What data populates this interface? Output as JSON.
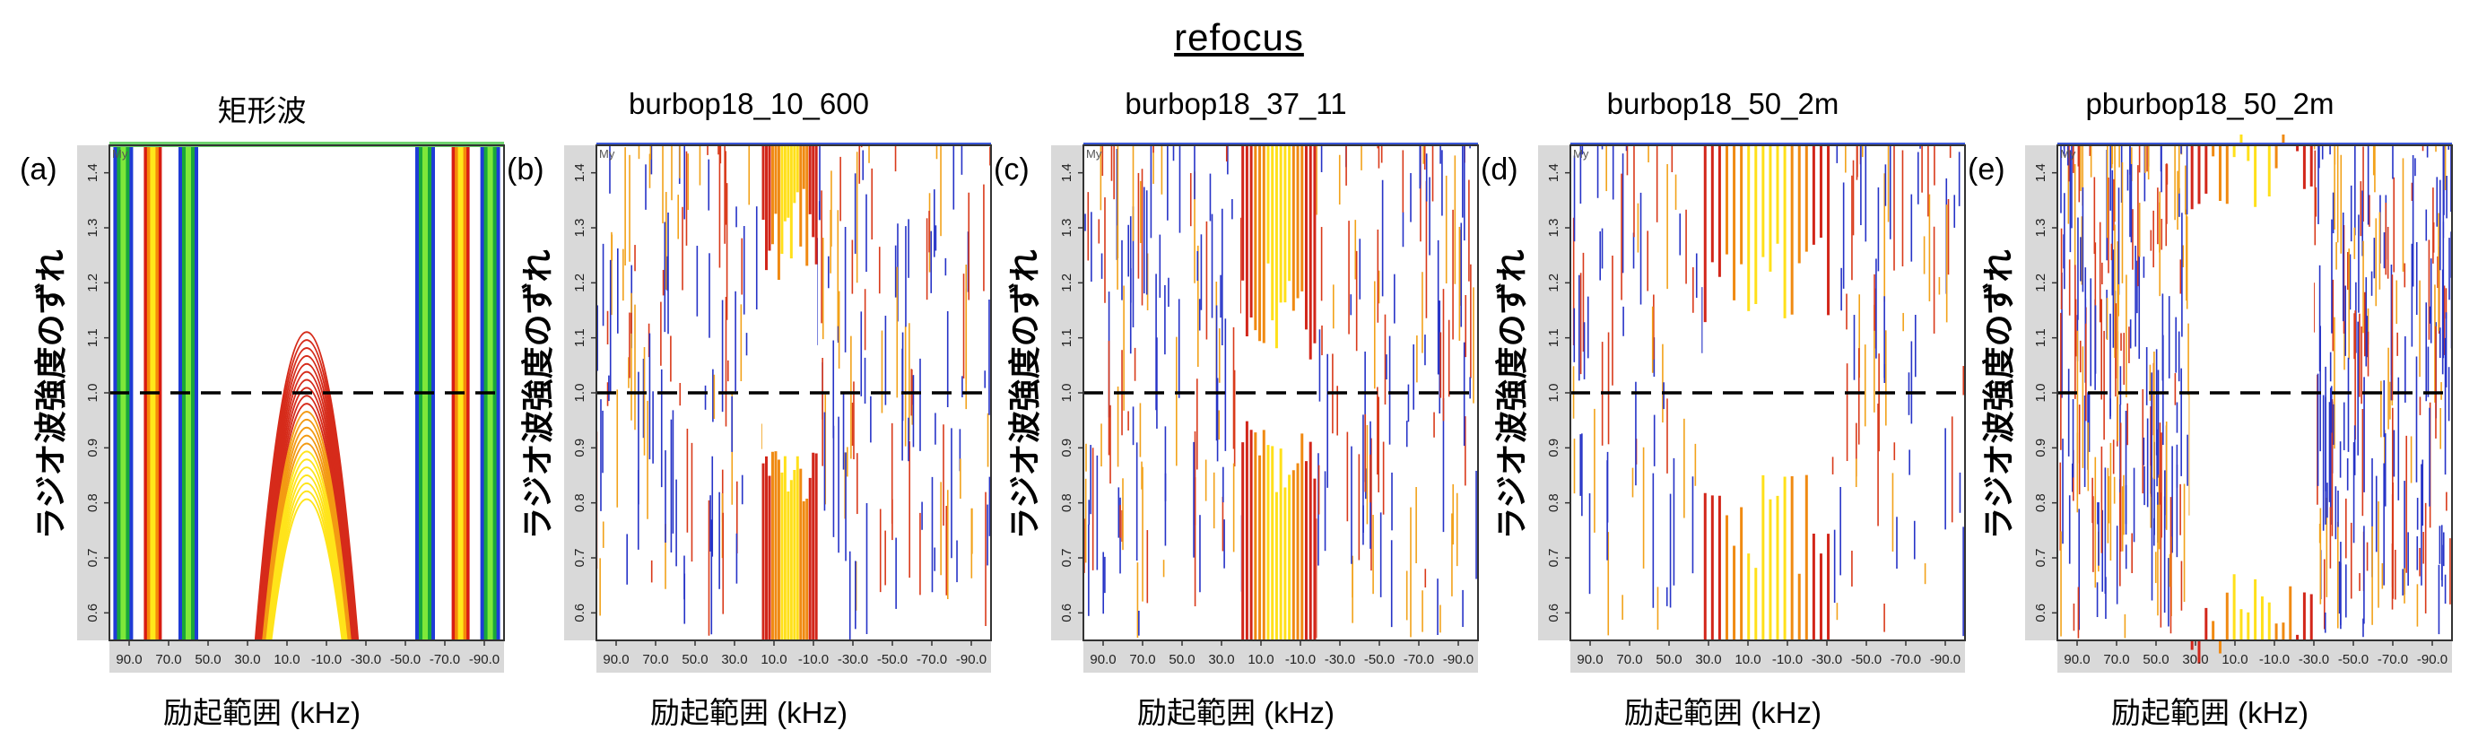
{
  "figure_title": "refocus",
  "chart_data": [
    {
      "type": "heatmap",
      "panel_label": "(a)",
      "title": "矩形波",
      "xlabel": "励起範囲 (kHz)",
      "ylabel": "ラジオ波強度のずれ",
      "plot_label": "My",
      "x_ticks": [
        "90.0",
        "70.0",
        "50.0",
        "30.0",
        "10.0",
        "-10.0",
        "-30.0",
        "-50.0",
        "-70.0",
        "-90.0"
      ],
      "y_ticks": [
        "0.6",
        "0.7",
        "0.8",
        "0.9",
        "1.0",
        "1.1",
        "1.2",
        "1.3",
        "1.4"
      ],
      "xlim": [
        100,
        -100
      ],
      "ylim": [
        0.55,
        1.45
      ],
      "reference_line_y": 1.0
    },
    {
      "type": "heatmap",
      "panel_label": "(b)",
      "title": "burbop18_10_600",
      "xlabel": "励起範囲 (kHz)",
      "ylabel": "ラジオ波強度のずれ",
      "plot_label": "My",
      "x_ticks": [
        "90.0",
        "70.0",
        "50.0",
        "30.0",
        "10.0",
        "-10.0",
        "-30.0",
        "-50.0",
        "-70.0",
        "-90.0"
      ],
      "y_ticks": [
        "0.6",
        "0.7",
        "0.8",
        "0.9",
        "1.0",
        "1.1",
        "1.2",
        "1.3",
        "1.4"
      ],
      "xlim": [
        100,
        -100
      ],
      "ylim": [
        0.55,
        1.45
      ],
      "reference_line_y": 1.0
    },
    {
      "type": "heatmap",
      "panel_label": "(c)",
      "title": "burbop18_37_11",
      "xlabel": "励起範囲 (kHz)",
      "ylabel": "ラジオ波強度のずれ",
      "plot_label": "My",
      "x_ticks": [
        "90.0",
        "70.0",
        "50.0",
        "30.0",
        "10.0",
        "-10.0",
        "-30.0",
        "-50.0",
        "-70.0",
        "-90.0"
      ],
      "y_ticks": [
        "0.6",
        "0.7",
        "0.8",
        "0.9",
        "1.0",
        "1.1",
        "1.2",
        "1.3",
        "1.4"
      ],
      "xlim": [
        100,
        -100
      ],
      "ylim": [
        0.55,
        1.45
      ],
      "reference_line_y": 1.0
    },
    {
      "type": "heatmap",
      "panel_label": "(d)",
      "title": "burbop18_50_2m",
      "xlabel": "励起範囲 (kHz)",
      "ylabel": "ラジオ波強度のずれ",
      "plot_label": "My",
      "x_ticks": [
        "90.0",
        "70.0",
        "50.0",
        "30.0",
        "10.0",
        "-10.0",
        "-30.0",
        "-50.0",
        "-70.0",
        "-90.0"
      ],
      "y_ticks": [
        "0.6",
        "0.7",
        "0.8",
        "0.9",
        "1.0",
        "1.1",
        "1.2",
        "1.3",
        "1.4"
      ],
      "xlim": [
        100,
        -100
      ],
      "ylim": [
        0.55,
        1.45
      ],
      "reference_line_y": 1.0
    },
    {
      "type": "heatmap",
      "panel_label": "(e)",
      "title": "pburbop18_50_2m",
      "xlabel": "励起範囲 (kHz)",
      "ylabel": "ラジオ波強度のずれ",
      "plot_label": "My",
      "x_ticks": [
        "90.0",
        "70.0",
        "50.0",
        "30.0",
        "10.0",
        "-10.0",
        "-30.0",
        "-50.0",
        "-70.0",
        "-90.0"
      ],
      "y_ticks": [
        "0.6",
        "0.7",
        "0.8",
        "0.9",
        "1.0",
        "1.1",
        "1.2",
        "1.3",
        "1.4"
      ],
      "xlim": [
        100,
        -100
      ],
      "ylim": [
        0.55,
        1.45
      ],
      "reference_line_y": 1.0
    }
  ]
}
